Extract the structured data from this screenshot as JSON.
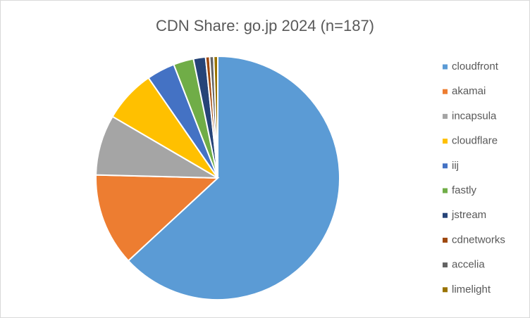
{
  "chart_data": {
    "type": "pie",
    "title": "CDN Share: go.jp 2024 (n=187)",
    "categories": [
      "cloudfront",
      "akamai",
      "incapsula",
      "cloudflare",
      "iij",
      "fastly",
      "jstream",
      "cdnetworks",
      "accelia",
      "limelight"
    ],
    "values": [
      118,
      23,
      15,
      13,
      7,
      5,
      3,
      1,
      1,
      1
    ],
    "colors": [
      "#5b9bd5",
      "#ed7d31",
      "#a5a5a5",
      "#ffc000",
      "#4472c4",
      "#70ad47",
      "#264478",
      "#9e480e",
      "#636363",
      "#997300"
    ],
    "legend": "right"
  }
}
